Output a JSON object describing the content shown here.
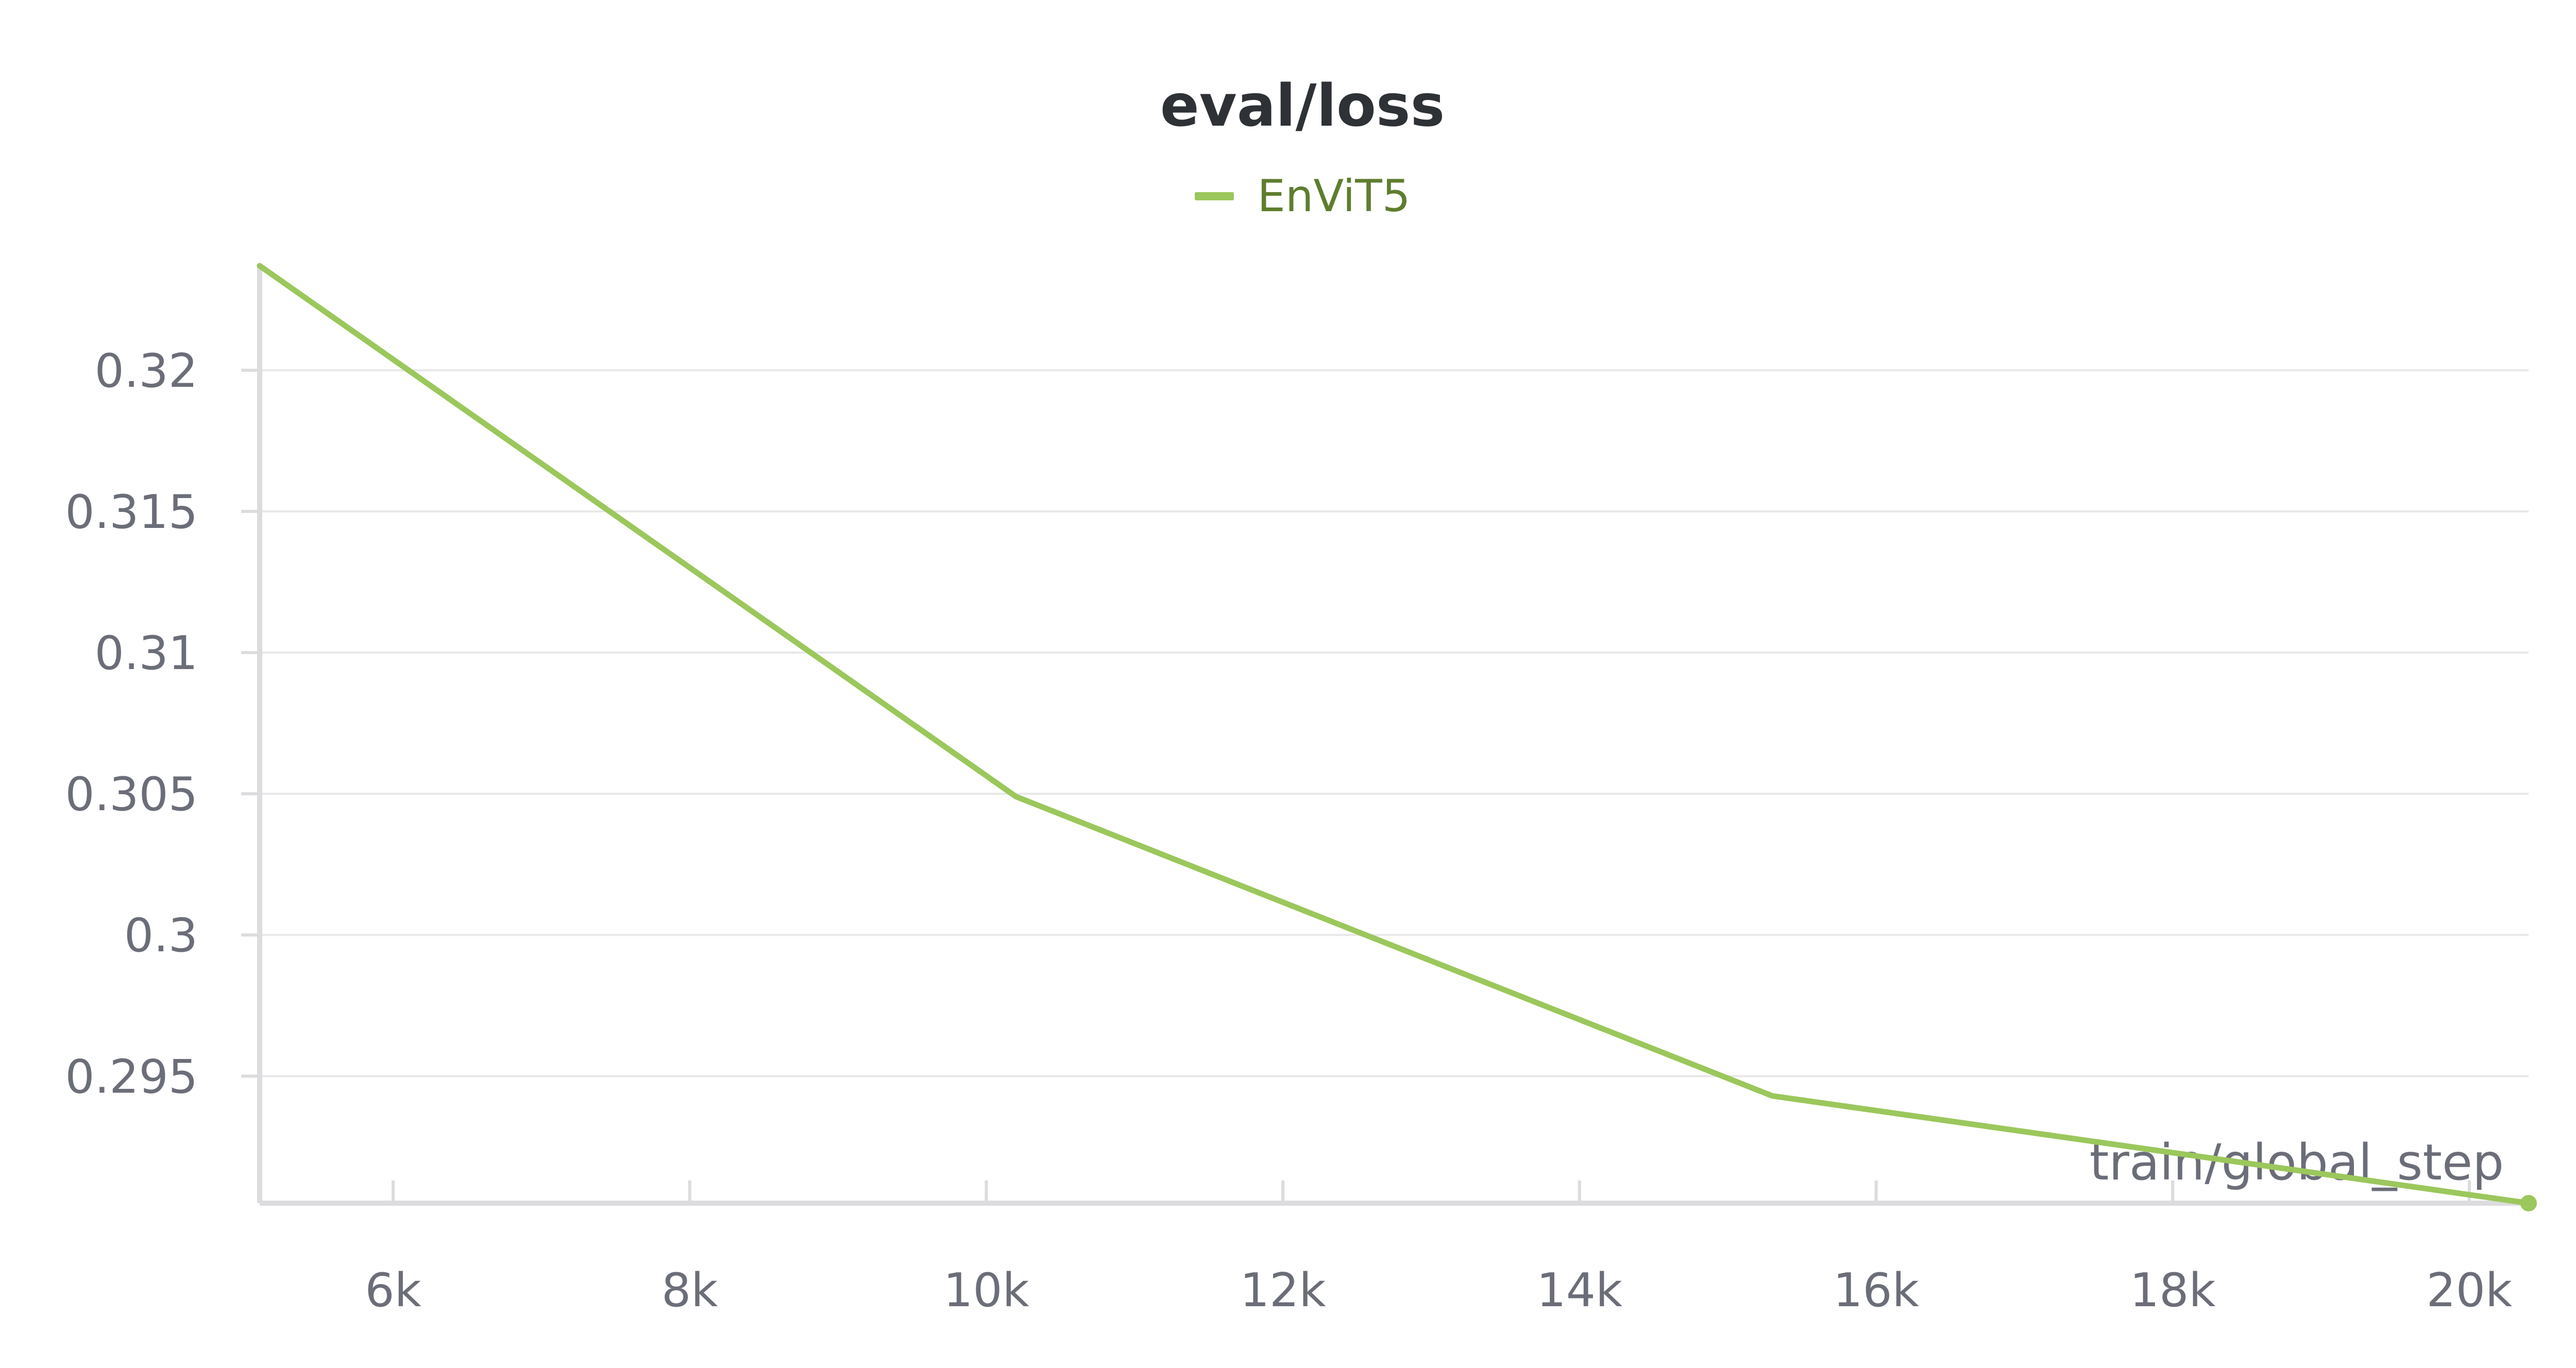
{
  "chart_data": {
    "type": "line",
    "title": "eval/loss",
    "xlabel": "train/global_step",
    "ylabel": "",
    "xlim": [
      5100,
      20400
    ],
    "ylim": [
      0.2905,
      0.3237
    ],
    "x_ticks": [
      6000,
      8000,
      10000,
      12000,
      14000,
      16000,
      18000,
      20000
    ],
    "x_tick_labels": [
      "6k",
      "8k",
      "10k",
      "12k",
      "14k",
      "16k",
      "18k",
      "20k"
    ],
    "y_ticks": [
      0.295,
      0.3,
      0.305,
      0.31,
      0.315,
      0.32
    ],
    "y_tick_labels": [
      "0.295",
      "0.3",
      "0.305",
      "0.31",
      "0.315",
      "0.32"
    ],
    "grid": true,
    "legend_position": "top-center",
    "series": [
      {
        "name": "EnViT5",
        "color": "#9bc75c",
        "legend_text_color": "#5f7d2e",
        "x": [
          5100,
          10200,
          15300,
          20400
        ],
        "y": [
          0.3237,
          0.3049,
          0.2943,
          0.2905
        ]
      }
    ]
  },
  "colors": {
    "grid": "#e8e8ea",
    "axis": "#dcdcdf",
    "tick_text": "#6b6e78",
    "title": "#2e3136"
  }
}
